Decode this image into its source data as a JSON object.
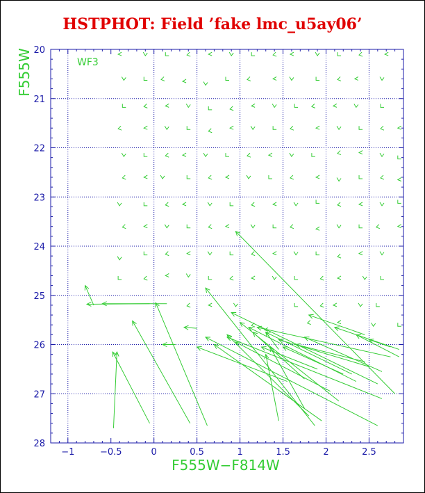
{
  "colors": {
    "title": "#e00000",
    "axis": "#1a1aa8",
    "grid": "#1a1aa8",
    "label": "#33cc33",
    "series": "#33cc33"
  },
  "chart_data": {
    "type": "vector-field",
    "title": "HSTPHOT: Field ’fake lmc_u5ay06’",
    "xlabel": "F555W−F814W",
    "ylabel": "F555W",
    "panel_label": "WF3",
    "xlim": [
      -1.2,
      2.9
    ],
    "ylim": [
      28,
      20
    ],
    "xticks": [
      -1,
      -0.5,
      0,
      0.5,
      1,
      1.5,
      2,
      2.5
    ],
    "xtick_labels": [
      "−1",
      "−0.5",
      "0",
      "0.5",
      "1",
      "1.5",
      "2",
      "2.5"
    ],
    "yticks": [
      20,
      21,
      22,
      23,
      24,
      25,
      26,
      27,
      28
    ],
    "ytick_labels": [
      "20",
      "21",
      "22",
      "23",
      "24",
      "25",
      "26",
      "27",
      "28"
    ],
    "grid": true,
    "grid_lines_x": [
      -1,
      0,
      0.5,
      1,
      1.5,
      2,
      2.5
    ],
    "grid_lines_y": [
      21,
      22,
      23,
      24,
      25,
      26,
      27
    ],
    "small_markers": [
      [
        -0.4,
        20.1
      ],
      [
        -0.1,
        20.1
      ],
      [
        0.15,
        20.1
      ],
      [
        0.4,
        20.1
      ],
      [
        0.65,
        20.1
      ],
      [
        0.9,
        20.1
      ],
      [
        1.15,
        20.1
      ],
      [
        1.4,
        20.1
      ],
      [
        1.6,
        20.1
      ],
      [
        1.9,
        20.1
      ],
      [
        2.15,
        20.1
      ],
      [
        2.4,
        20.1
      ],
      [
        2.7,
        20.1
      ],
      [
        -0.35,
        20.6
      ],
      [
        -0.1,
        20.6
      ],
      [
        0.1,
        20.6
      ],
      [
        0.35,
        20.65
      ],
      [
        0.6,
        20.7
      ],
      [
        0.85,
        20.6
      ],
      [
        1.1,
        20.6
      ],
      [
        1.4,
        20.6
      ],
      [
        1.6,
        20.6
      ],
      [
        1.9,
        20.6
      ],
      [
        2.15,
        20.6
      ],
      [
        2.35,
        20.6
      ],
      [
        2.65,
        20.6
      ],
      [
        -0.35,
        21.15
      ],
      [
        -0.1,
        21.15
      ],
      [
        0.15,
        21.15
      ],
      [
        0.4,
        21.15
      ],
      [
        0.65,
        21.2
      ],
      [
        0.9,
        21.2
      ],
      [
        1.15,
        21.15
      ],
      [
        1.4,
        21.15
      ],
      [
        1.65,
        21.15
      ],
      [
        1.85,
        21.15
      ],
      [
        2.1,
        21.15
      ],
      [
        2.35,
        21.15
      ],
      [
        2.65,
        21.15
      ],
      [
        -0.4,
        21.6
      ],
      [
        -0.1,
        21.6
      ],
      [
        0.15,
        21.6
      ],
      [
        0.4,
        21.6
      ],
      [
        0.65,
        21.65
      ],
      [
        0.9,
        21.6
      ],
      [
        1.15,
        21.6
      ],
      [
        1.4,
        21.6
      ],
      [
        1.6,
        21.6
      ],
      [
        1.9,
        21.6
      ],
      [
        2.15,
        21.6
      ],
      [
        2.4,
        21.6
      ],
      [
        2.65,
        21.6
      ],
      [
        2.85,
        21.6
      ],
      [
        -0.35,
        22.15
      ],
      [
        -0.1,
        22.15
      ],
      [
        0.15,
        22.15
      ],
      [
        0.35,
        22.15
      ],
      [
        0.6,
        22.15
      ],
      [
        0.85,
        22.15
      ],
      [
        1.1,
        22.15
      ],
      [
        1.35,
        22.15
      ],
      [
        1.6,
        22.15
      ],
      [
        1.85,
        22.15
      ],
      [
        2.15,
        22.1
      ],
      [
        2.4,
        22.1
      ],
      [
        2.65,
        22.15
      ],
      [
        2.85,
        22.2
      ],
      [
        -0.35,
        22.6
      ],
      [
        -0.1,
        22.6
      ],
      [
        0.1,
        22.6
      ],
      [
        0.4,
        22.6
      ],
      [
        0.65,
        22.6
      ],
      [
        0.85,
        22.6
      ],
      [
        1.1,
        22.6
      ],
      [
        1.35,
        22.6
      ],
      [
        1.6,
        22.6
      ],
      [
        1.9,
        22.6
      ],
      [
        2.15,
        22.65
      ],
      [
        2.4,
        22.6
      ],
      [
        2.65,
        22.6
      ],
      [
        2.85,
        22.65
      ],
      [
        -0.4,
        23.15
      ],
      [
        -0.1,
        23.15
      ],
      [
        0.15,
        23.15
      ],
      [
        0.35,
        23.15
      ],
      [
        0.65,
        23.15
      ],
      [
        0.9,
        23.15
      ],
      [
        1.15,
        23.15
      ],
      [
        1.4,
        23.15
      ],
      [
        1.65,
        23.15
      ],
      [
        1.9,
        23.1
      ],
      [
        2.15,
        23.15
      ],
      [
        2.4,
        23.15
      ],
      [
        2.65,
        23.15
      ],
      [
        2.85,
        23.1
      ],
      [
        -0.35,
        23.6
      ],
      [
        -0.1,
        23.6
      ],
      [
        0.15,
        23.6
      ],
      [
        0.4,
        23.6
      ],
      [
        0.65,
        23.6
      ],
      [
        0.85,
        23.6
      ],
      [
        1.15,
        23.6
      ],
      [
        1.4,
        23.6
      ],
      [
        1.6,
        23.6
      ],
      [
        1.9,
        23.65
      ],
      [
        2.15,
        23.6
      ],
      [
        2.4,
        23.6
      ],
      [
        2.6,
        23.6
      ],
      [
        2.85,
        23.6
      ],
      [
        -0.4,
        24.25
      ],
      [
        -0.1,
        24.15
      ],
      [
        0.15,
        24.15
      ],
      [
        0.4,
        24.15
      ],
      [
        0.65,
        24.15
      ],
      [
        0.9,
        24.15
      ],
      [
        1.15,
        24.15
      ],
      [
        1.4,
        24.15
      ],
      [
        1.65,
        24.15
      ],
      [
        1.9,
        24.15
      ],
      [
        2.15,
        24.2
      ],
      [
        2.4,
        24.15
      ],
      [
        2.65,
        24.15
      ],
      [
        -0.4,
        24.65
      ],
      [
        -0.1,
        24.65
      ],
      [
        0.15,
        24.6
      ],
      [
        0.4,
        24.6
      ],
      [
        0.65,
        24.65
      ],
      [
        0.9,
        24.65
      ],
      [
        1.15,
        24.65
      ],
      [
        1.4,
        24.65
      ],
      [
        1.65,
        24.65
      ],
      [
        1.95,
        24.65
      ],
      [
        2.15,
        24.65
      ],
      [
        2.45,
        24.65
      ],
      [
        2.65,
        24.65
      ],
      [
        0.4,
        25.2
      ],
      [
        0.65,
        25.2
      ],
      [
        0.95,
        25.2
      ],
      [
        1.65,
        25.2
      ],
      [
        1.95,
        25.2
      ],
      [
        2.1,
        25.2
      ],
      [
        2.4,
        25.2
      ],
      [
        2.6,
        25.2
      ],
      [
        1.8,
        25.55
      ],
      [
        2.15,
        25.55
      ],
      [
        2.55,
        25.6
      ],
      [
        2.85,
        25.6
      ],
      [
        1.15,
        25.6
      ],
      [
        1.3,
        25.7
      ]
    ],
    "vectors": [
      [
        -0.47,
        27.7,
        -0.43,
        26.15
      ],
      [
        -0.05,
        27.6,
        -0.48,
        26.15
      ],
      [
        0.42,
        27.6,
        -0.25,
        25.52
      ],
      [
        0.62,
        27.65,
        0.02,
        25.15
      ],
      [
        -0.05,
        25.17,
        -0.78,
        25.18
      ],
      [
        0.15,
        25.17,
        -0.6,
        25.17
      ],
      [
        -0.7,
        25.2,
        -0.8,
        24.8
      ],
      [
        0.5,
        25.67,
        0.35,
        25.65
      ],
      [
        0.25,
        26.0,
        0.1,
        26.0
      ],
      [
        1.87,
        27.65,
        0.6,
        24.85
      ],
      [
        2.8,
        27.0,
        0.95,
        23.7
      ],
      [
        1.55,
        26.75,
        0.5,
        26.05
      ],
      [
        2.6,
        27.65,
        0.6,
        25.85
      ],
      [
        1.95,
        27.55,
        0.7,
        26.0
      ],
      [
        2.65,
        27.1,
        0.85,
        25.85
      ],
      [
        2.6,
        26.8,
        0.9,
        25.35
      ],
      [
        1.8,
        27.45,
        0.85,
        25.8
      ],
      [
        2.15,
        27.15,
        1.0,
        25.55
      ],
      [
        2.35,
        26.75,
        1.1,
        25.65
      ],
      [
        2.75,
        26.25,
        1.2,
        25.65
      ],
      [
        2.05,
        26.95,
        0.95,
        25.95
      ],
      [
        2.3,
        26.6,
        1.3,
        25.75
      ],
      [
        2.5,
        26.45,
        1.45,
        25.9
      ],
      [
        2.65,
        26.55,
        1.75,
        25.85
      ],
      [
        2.2,
        26.6,
        1.5,
        26.05
      ],
      [
        2.45,
        26.35,
        1.65,
        26.0
      ],
      [
        1.75,
        27.3,
        1.35,
        26.05
      ],
      [
        1.45,
        27.55,
        1.3,
        26.2
      ],
      [
        2.45,
        25.8,
        1.8,
        25.4
      ],
      [
        2.85,
        26.25,
        2.35,
        25.8
      ],
      [
        2.85,
        26.1,
        2.1,
        25.65
      ],
      [
        2.75,
        26.05,
        2.5,
        25.9
      ],
      [
        1.45,
        26.1,
        1.3,
        25.75
      ],
      [
        1.75,
        26.7,
        1.15,
        25.75
      ],
      [
        1.9,
        26.5,
        1.25,
        26.05
      ]
    ]
  }
}
